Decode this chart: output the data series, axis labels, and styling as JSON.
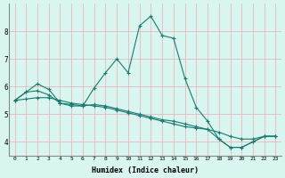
{
  "xlabel": "Humidex (Indice chaleur)",
  "background_color": "#d8f5f0",
  "grid_color": "#c8e8e0",
  "line_color": "#1a7a6e",
  "xlim": [
    -0.5,
    23.5
  ],
  "ylim": [
    3.5,
    9.0
  ],
  "yticks": [
    4,
    5,
    6,
    7,
    8
  ],
  "xticks": [
    0,
    1,
    2,
    3,
    4,
    5,
    6,
    7,
    8,
    9,
    10,
    11,
    12,
    13,
    14,
    15,
    16,
    17,
    18,
    19,
    20,
    21,
    22,
    23
  ],
  "series": [
    [
      5.5,
      5.8,
      6.1,
      5.9,
      5.4,
      5.35,
      5.3,
      5.95,
      6.5,
      7.0,
      6.5,
      8.2,
      8.55,
      7.85,
      7.75,
      6.3,
      5.25,
      4.75,
      4.1,
      3.8,
      3.8,
      4.0,
      4.2,
      4.2
    ],
    [
      5.5,
      5.8,
      5.85,
      5.7,
      5.4,
      5.3,
      5.3,
      5.35,
      5.3,
      5.2,
      5.1,
      5.0,
      4.9,
      4.8,
      4.75,
      4.65,
      4.55,
      4.45,
      4.1,
      3.8,
      3.8,
      4.0,
      4.2,
      4.2
    ],
    [
      5.5,
      5.55,
      5.6,
      5.6,
      5.5,
      5.4,
      5.35,
      5.3,
      5.25,
      5.15,
      5.05,
      4.95,
      4.85,
      4.75,
      4.65,
      4.55,
      4.5,
      4.45,
      4.35,
      4.2,
      4.1,
      4.1,
      4.2,
      4.2
    ]
  ],
  "x_values": [
    0,
    1,
    2,
    3,
    4,
    5,
    6,
    7,
    8,
    9,
    10,
    11,
    12,
    13,
    14,
    15,
    16,
    17,
    18,
    19,
    20,
    21,
    22,
    23
  ]
}
